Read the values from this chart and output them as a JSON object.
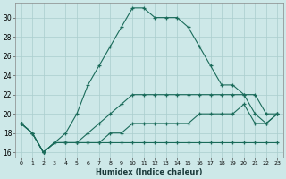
{
  "xlabel": "Humidex (Indice chaleur)",
  "ylabel": "",
  "bg_color": "#cde8e8",
  "line_color": "#1a6b5a",
  "xlim": [
    -0.5,
    23.5
  ],
  "ylim": [
    15.5,
    31.5
  ],
  "xticks": [
    0,
    1,
    2,
    3,
    4,
    5,
    6,
    7,
    8,
    9,
    10,
    11,
    12,
    13,
    14,
    15,
    16,
    17,
    18,
    19,
    20,
    21,
    22,
    23
  ],
  "yticks": [
    16,
    18,
    20,
    22,
    24,
    26,
    28,
    30
  ],
  "series": [
    [
      19,
      18,
      16,
      17,
      17,
      17,
      17,
      17,
      17,
      17,
      17,
      17,
      17,
      17,
      17,
      17,
      17,
      17,
      17,
      17,
      17,
      17,
      17,
      17
    ],
    [
      19,
      18,
      16,
      17,
      17,
      17,
      17,
      17,
      18,
      18,
      19,
      19,
      19,
      19,
      19,
      19,
      20,
      20,
      20,
      20,
      21,
      19,
      19,
      20
    ],
    [
      19,
      18,
      16,
      17,
      17,
      17,
      18,
      19,
      20,
      21,
      22,
      22,
      22,
      22,
      22,
      22,
      22,
      22,
      22,
      22,
      22,
      22,
      20,
      20
    ],
    [
      19,
      18,
      16,
      17,
      18,
      20,
      23,
      25,
      27,
      29,
      31,
      31,
      30,
      30,
      30,
      29,
      27,
      25,
      23,
      23,
      22,
      20,
      19,
      20
    ]
  ]
}
